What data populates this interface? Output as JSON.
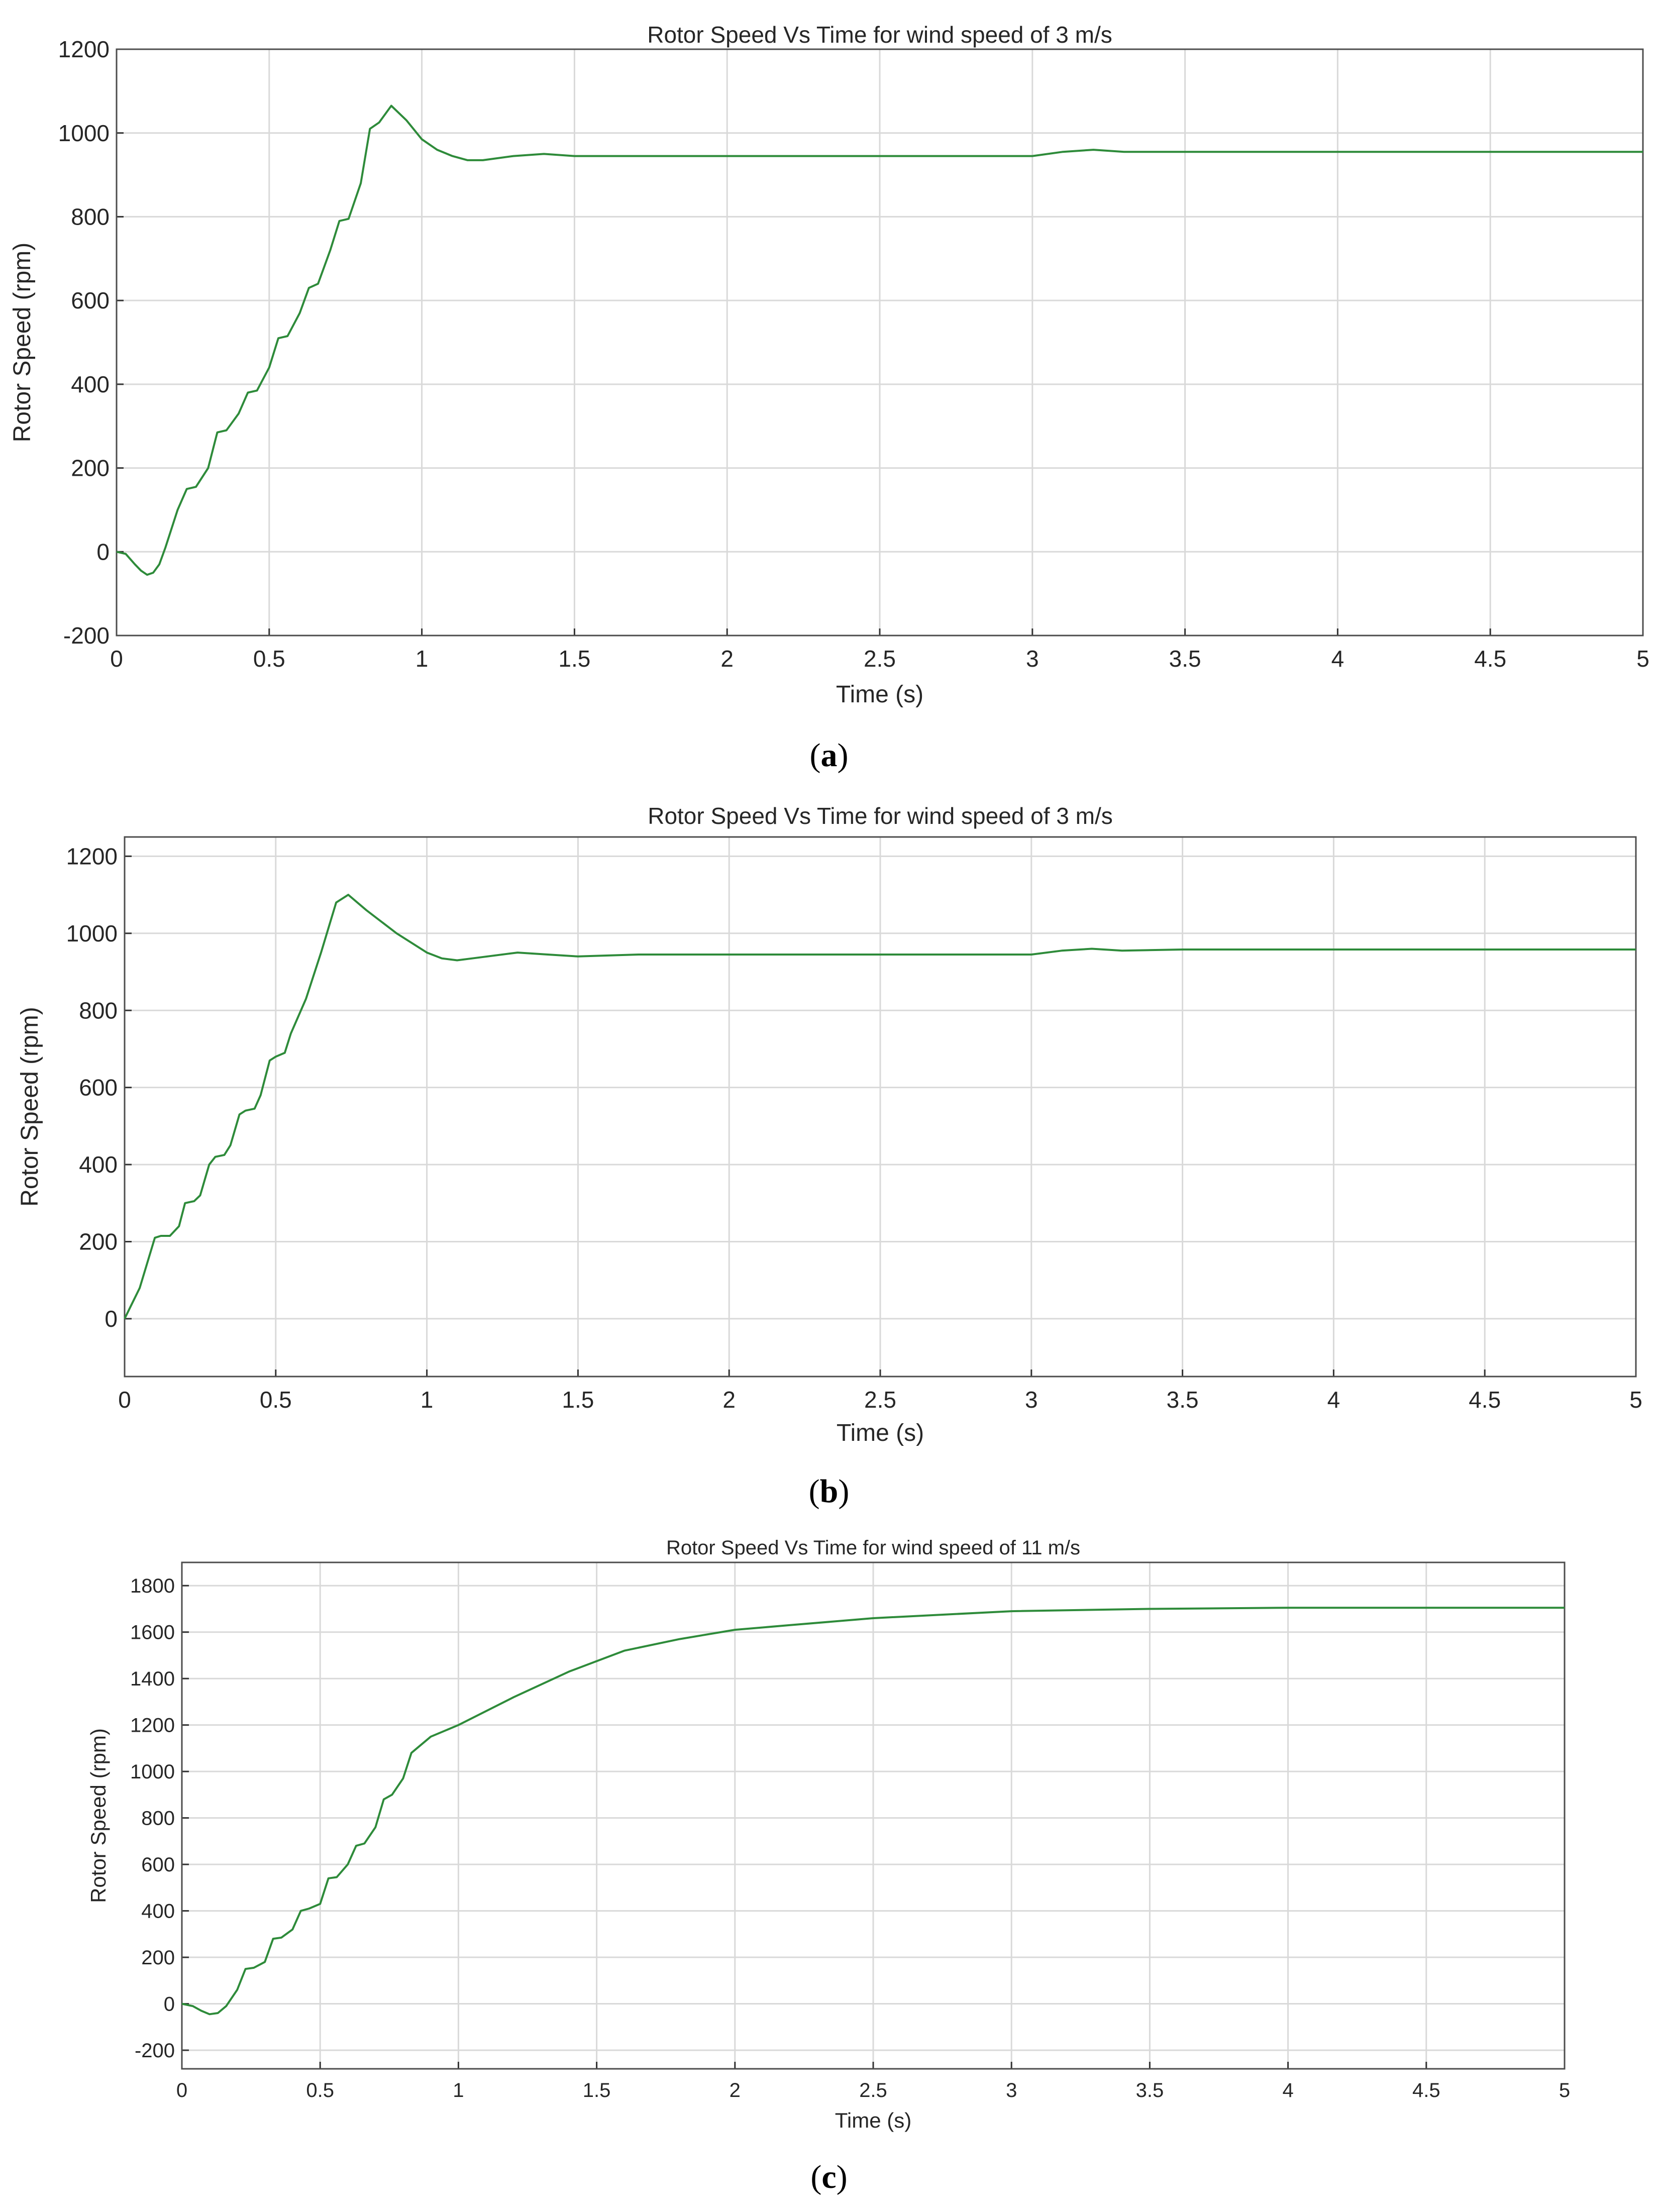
{
  "chart_data": [
    {
      "type": "line",
      "panel_label": "a",
      "title": "Rotor Speed Vs Time for wind speed of 3 m/s",
      "xlabel": "Time (s)",
      "ylabel": "Rotor Speed (rpm)",
      "xlim": [
        0,
        5
      ],
      "ylim": [
        -200,
        1200
      ],
      "xticks": [
        "0",
        "0.5",
        "1",
        "1.5",
        "2",
        "2.5",
        "3",
        "3.5",
        "4",
        "4.5",
        "5"
      ],
      "yticks": [
        "-200",
        "0",
        "200",
        "400",
        "600",
        "800",
        "1000",
        "1200"
      ],
      "grid": true,
      "line_color": "#2e8b3a",
      "series": [
        {
          "x": [
            0,
            0.03,
            0.06,
            0.08,
            0.1,
            0.12,
            0.14,
            0.16,
            0.2,
            0.23,
            0.26,
            0.3,
            0.33,
            0.36,
            0.4,
            0.43,
            0.46,
            0.5,
            0.53,
            0.56,
            0.6,
            0.63,
            0.66,
            0.7,
            0.73,
            0.76,
            0.8,
            0.83,
            0.86,
            0.9,
            0.95,
            1.0,
            1.05,
            1.1,
            1.15,
            1.2,
            1.3,
            1.4,
            1.5,
            2.0,
            2.5,
            2.95,
            3.0,
            3.1,
            3.2,
            3.3,
            3.5,
            4.0,
            4.5,
            5.0
          ],
          "y": [
            0,
            -5,
            -30,
            -45,
            -55,
            -50,
            -30,
            10,
            100,
            150,
            155,
            200,
            285,
            290,
            330,
            380,
            385,
            440,
            510,
            515,
            570,
            630,
            640,
            720,
            790,
            795,
            880,
            1010,
            1025,
            1065,
            1030,
            985,
            960,
            945,
            935,
            935,
            945,
            950,
            945,
            945,
            945,
            945,
            945,
            955,
            960,
            955,
            955,
            955,
            955,
            955
          ]
        }
      ]
    },
    {
      "type": "line",
      "panel_label": "b",
      "title": "Rotor Speed Vs Time for wind speed of 3 m/s",
      "xlabel": "Time (s)",
      "ylabel": "Rotor Speed (rpm)",
      "xlim": [
        0,
        5
      ],
      "ylim": [
        -150,
        1250
      ],
      "xticks": [
        "0",
        "0.5",
        "1",
        "1.5",
        "2",
        "2.5",
        "3",
        "3.5",
        "4",
        "4.5",
        "5"
      ],
      "yticks": [
        "0",
        "200",
        "400",
        "600",
        "800",
        "1000",
        "1200"
      ],
      "grid": true,
      "line_color": "#2e8b3a",
      "series": [
        {
          "x": [
            0,
            0.05,
            0.1,
            0.12,
            0.15,
            0.18,
            0.2,
            0.23,
            0.25,
            0.28,
            0.3,
            0.33,
            0.35,
            0.38,
            0.4,
            0.43,
            0.45,
            0.48,
            0.5,
            0.53,
            0.55,
            0.6,
            0.65,
            0.7,
            0.74,
            0.8,
            0.9,
            1.0,
            1.05,
            1.1,
            1.15,
            1.2,
            1.3,
            1.4,
            1.5,
            1.7,
            2.0,
            2.5,
            2.95,
            3.0,
            3.1,
            3.2,
            3.3,
            3.5,
            4.0,
            4.5,
            5.0
          ],
          "y": [
            0,
            80,
            210,
            215,
            215,
            240,
            300,
            305,
            320,
            400,
            420,
            425,
            450,
            530,
            540,
            545,
            580,
            670,
            680,
            690,
            740,
            830,
            950,
            1080,
            1100,
            1060,
            1000,
            950,
            935,
            930,
            935,
            940,
            950,
            945,
            940,
            945,
            945,
            945,
            945,
            945,
            955,
            960,
            955,
            958,
            958,
            958,
            958
          ]
        }
      ]
    },
    {
      "type": "line",
      "panel_label": "c",
      "title": "Rotor Speed Vs Time for wind speed of 11 m/s",
      "xlabel": "Time (s)",
      "ylabel": "Rotor Speed (rpm)",
      "xlim": [
        0,
        5
      ],
      "ylim": [
        -280,
        1900
      ],
      "xticks": [
        "0",
        "0.5",
        "1",
        "1.5",
        "2",
        "2.5",
        "3",
        "3.5",
        "4",
        "4.5",
        "5"
      ],
      "yticks": [
        "-200",
        "0",
        "200",
        "400",
        "600",
        "800",
        "1000",
        "1200",
        "1400",
        "1600",
        "1800"
      ],
      "grid": true,
      "line_color": "#2e8b3a",
      "series": [
        {
          "x": [
            0,
            0.04,
            0.07,
            0.1,
            0.13,
            0.16,
            0.2,
            0.23,
            0.26,
            0.3,
            0.33,
            0.36,
            0.4,
            0.43,
            0.46,
            0.5,
            0.53,
            0.56,
            0.6,
            0.63,
            0.66,
            0.7,
            0.73,
            0.76,
            0.8,
            0.83,
            0.86,
            0.9,
            1.0,
            1.2,
            1.4,
            1.6,
            1.8,
            2.0,
            2.2,
            2.5,
            3.0,
            3.5,
            4.0,
            4.5,
            5.0
          ],
          "y": [
            0,
            -10,
            -30,
            -45,
            -40,
            -10,
            60,
            150,
            155,
            180,
            280,
            285,
            320,
            400,
            410,
            430,
            540,
            545,
            600,
            680,
            690,
            760,
            880,
            900,
            970,
            1080,
            1110,
            1150,
            1200,
            1320,
            1430,
            1520,
            1570,
            1610,
            1630,
            1660,
            1690,
            1700,
            1705,
            1705,
            1705
          ]
        }
      ]
    }
  ]
}
